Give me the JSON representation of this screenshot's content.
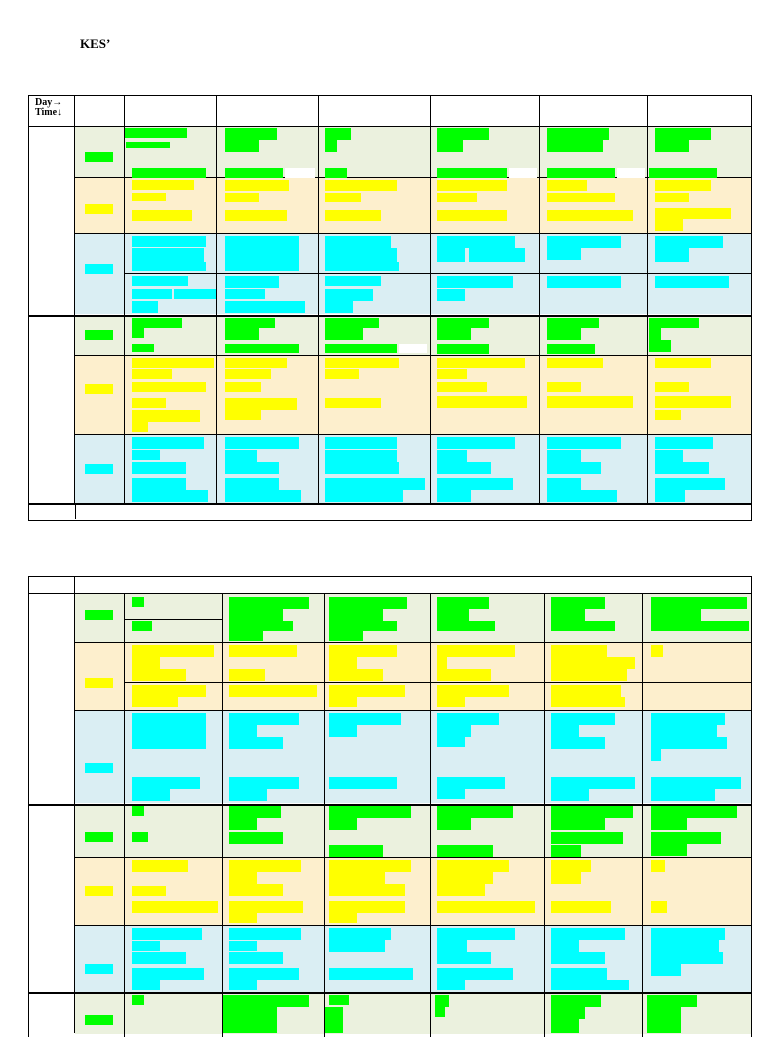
{
  "page": {
    "title": "KES’"
  },
  "table1": {
    "corner_day": "Day→",
    "corner_time": "Time↓"
  },
  "colors": {
    "morning_band": "#ebf1de",
    "midday_band": "#fdefcd",
    "afternoon_band": "#daeef3",
    "green_highlight": "#00ff00",
    "yellow_highlight": "#ffff00",
    "cyan_highlight": "#00ffff"
  }
}
